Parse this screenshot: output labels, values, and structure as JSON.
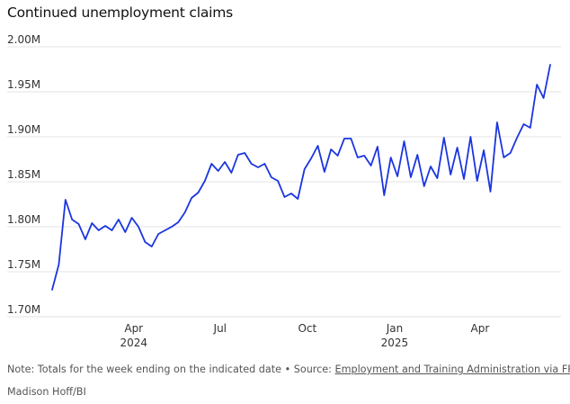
{
  "chart_data": {
    "type": "line",
    "title": "Continued unemployment claims",
    "xlabel": "",
    "ylabel": "",
    "ylim": [
      1700000,
      2000000
    ],
    "y_ticks": [
      1700000,
      1750000,
      1800000,
      1850000,
      1900000,
      1950000,
      2000000
    ],
    "y_tick_labels": [
      "1.70M",
      "1.75M",
      "1.80M",
      "1.85M",
      "1.90M",
      "1.95M",
      "2.00M"
    ],
    "x_range": [
      "2024-01-06",
      "2025-06-14"
    ],
    "x_ticks": [
      {
        "date": "2024-04-01",
        "label": "Apr",
        "sublabel": "2024"
      },
      {
        "date": "2024-07-01",
        "label": "Jul",
        "sublabel": ""
      },
      {
        "date": "2024-10-01",
        "label": "Oct",
        "sublabel": ""
      },
      {
        "date": "2025-01-01",
        "label": "Jan",
        "sublabel": "2025"
      },
      {
        "date": "2025-04-01",
        "label": "Apr",
        "sublabel": ""
      }
    ],
    "grid": "horizontal",
    "line_color": "#1a35e0",
    "series": [
      {
        "name": "",
        "x": [
          "2024-01-06",
          "2024-01-13",
          "2024-01-20",
          "2024-01-27",
          "2024-02-03",
          "2024-02-10",
          "2024-02-17",
          "2024-02-24",
          "2024-03-02",
          "2024-03-09",
          "2024-03-16",
          "2024-03-23",
          "2024-03-30",
          "2024-04-06",
          "2024-04-13",
          "2024-04-20",
          "2024-04-27",
          "2024-05-04",
          "2024-05-11",
          "2024-05-18",
          "2024-05-25",
          "2024-06-01",
          "2024-06-08",
          "2024-06-15",
          "2024-06-22",
          "2024-06-29",
          "2024-07-06",
          "2024-07-13",
          "2024-07-20",
          "2024-07-27",
          "2024-08-03",
          "2024-08-10",
          "2024-08-17",
          "2024-08-24",
          "2024-08-31",
          "2024-09-07",
          "2024-09-14",
          "2024-09-21",
          "2024-09-28",
          "2024-10-05",
          "2024-10-12",
          "2024-10-19",
          "2024-10-26",
          "2024-11-02",
          "2024-11-09",
          "2024-11-16",
          "2024-11-23",
          "2024-11-30",
          "2024-12-07",
          "2024-12-14",
          "2024-12-21",
          "2024-12-28",
          "2025-01-04",
          "2025-01-11",
          "2025-01-18",
          "2025-01-25",
          "2025-02-01",
          "2025-02-08",
          "2025-02-15",
          "2025-02-22",
          "2025-03-01",
          "2025-03-08",
          "2025-03-15",
          "2025-03-22",
          "2025-03-29",
          "2025-04-05",
          "2025-04-12",
          "2025-04-19",
          "2025-04-26",
          "2025-05-03",
          "2025-05-10",
          "2025-05-17",
          "2025-05-24",
          "2025-05-31",
          "2025-06-07",
          "2025-06-14"
        ],
        "values": [
          1722000,
          1750000,
          1822000,
          1800000,
          1795000,
          1778000,
          1796000,
          1788000,
          1793000,
          1788000,
          1800000,
          1786000,
          1802000,
          1792000,
          1775000,
          1770000,
          1784000,
          1788000,
          1792000,
          1797000,
          1808000,
          1824000,
          1830000,
          1843000,
          1862000,
          1854000,
          1864000,
          1852000,
          1872000,
          1874000,
          1862000,
          1858000,
          1862000,
          1847000,
          1843000,
          1825000,
          1829000,
          1823000,
          1856000,
          1868000,
          1882000,
          1853000,
          1878000,
          1871000,
          1890000,
          1890000,
          1869000,
          1871000,
          1860000,
          1881000,
          1827000,
          1869000,
          1848000,
          1887000,
          1847000,
          1872000,
          1837000,
          1859000,
          1846000,
          1891000,
          1850000,
          1880000,
          1845000,
          1892000,
          1843000,
          1877000,
          1831000,
          1908000,
          1869000,
          1874000,
          1891000,
          1906000,
          1902000,
          1950000,
          1935000,
          1972000
        ]
      }
    ]
  },
  "footer": {
    "note_prefix": "Note: Totals for the week ending on the indicated date • Source: ",
    "source_link": "Employment and Training Administration via FRED",
    "credit": "Madison Hoff/BI"
  }
}
